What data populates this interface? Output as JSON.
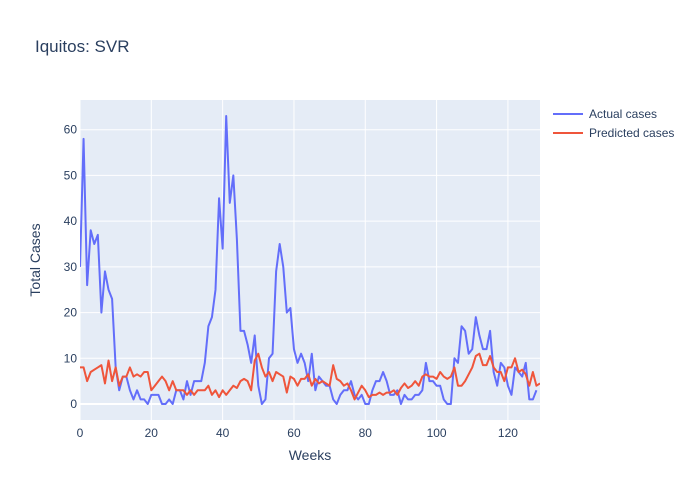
{
  "chart_data": {
    "type": "line",
    "title": "Iquitos: SVR",
    "xlabel": "Weeks",
    "ylabel": "Total Cases",
    "xlim": [
      0,
      129
    ],
    "ylim": [
      -3.5,
      66.5
    ],
    "x_ticks": [
      0,
      20,
      40,
      60,
      80,
      100,
      120
    ],
    "y_ticks": [
      0,
      10,
      20,
      30,
      40,
      50,
      60
    ],
    "legend_position": "top-right",
    "colors": {
      "actual": "#636efa",
      "predicted": "#ef553b",
      "plot_bg": "#e5ecf6",
      "grid": "#ffffff",
      "text": "#2a3f5f"
    },
    "series": [
      {
        "name": "Actual cases",
        "color": "#636efa",
        "values": [
          30,
          58,
          26,
          38,
          35,
          37,
          20,
          29,
          25,
          23,
          8,
          3,
          6,
          6,
          3,
          1,
          3,
          1,
          1,
          0,
          2,
          2,
          2,
          0,
          0,
          1,
          0,
          3,
          3,
          1,
          5,
          2,
          5,
          5,
          5,
          9,
          17,
          19,
          25,
          45,
          34,
          63,
          44,
          50,
          36,
          16,
          16,
          13,
          9,
          15,
          4,
          0,
          1,
          10,
          11,
          29,
          35,
          30,
          20,
          21,
          12,
          9,
          11,
          9,
          5,
          11,
          3,
          6,
          5,
          4,
          4,
          1,
          0,
          2,
          3,
          3,
          5,
          2,
          1,
          2,
          0,
          0,
          3,
          5,
          5,
          7,
          5,
          2,
          2,
          3,
          0,
          2,
          1,
          1,
          2,
          2,
          3,
          9,
          5,
          5,
          4,
          4,
          1,
          0,
          0,
          10,
          9,
          17,
          16,
          11,
          12,
          19,
          15,
          12,
          12,
          16,
          7,
          4,
          9,
          8,
          4,
          2,
          8,
          7,
          6,
          9,
          1,
          1,
          3
        ]
      },
      {
        "name": "Predicted cases",
        "color": "#ef553b",
        "values": [
          8,
          8,
          5,
          7,
          7.5,
          8,
          8.5,
          4.5,
          9.5,
          5,
          8,
          4,
          6,
          6,
          8,
          6,
          6.5,
          6,
          7,
          7,
          3,
          4,
          5,
          6,
          5,
          3,
          5,
          3,
          3,
          3,
          2,
          3,
          2,
          3,
          3,
          3,
          4,
          2,
          3,
          1.5,
          3,
          2,
          3,
          4,
          3.5,
          5,
          5.5,
          5,
          3,
          9.5,
          11,
          8,
          6,
          7,
          5,
          7,
          6.5,
          6,
          2.5,
          6,
          5.5,
          4,
          5.5,
          5.5,
          6.5,
          4,
          5.5,
          4.5,
          5,
          4.5,
          4,
          8.5,
          5.5,
          5,
          4,
          4.5,
          3,
          1,
          2.5,
          4,
          3,
          1.5,
          2,
          2,
          2.5,
          2,
          2.5,
          2.5,
          3,
          2,
          3.5,
          4.5,
          3.5,
          4,
          5,
          4,
          6,
          6.5,
          6,
          6,
          5.5,
          7,
          6,
          5.5,
          6,
          8,
          4,
          4,
          5,
          6.5,
          8,
          10.5,
          11,
          8.5,
          8.5,
          10.5,
          8,
          7,
          7,
          5,
          8,
          8,
          10,
          7,
          7.5,
          6.5,
          4,
          7,
          4,
          4.5
        ]
      }
    ]
  }
}
